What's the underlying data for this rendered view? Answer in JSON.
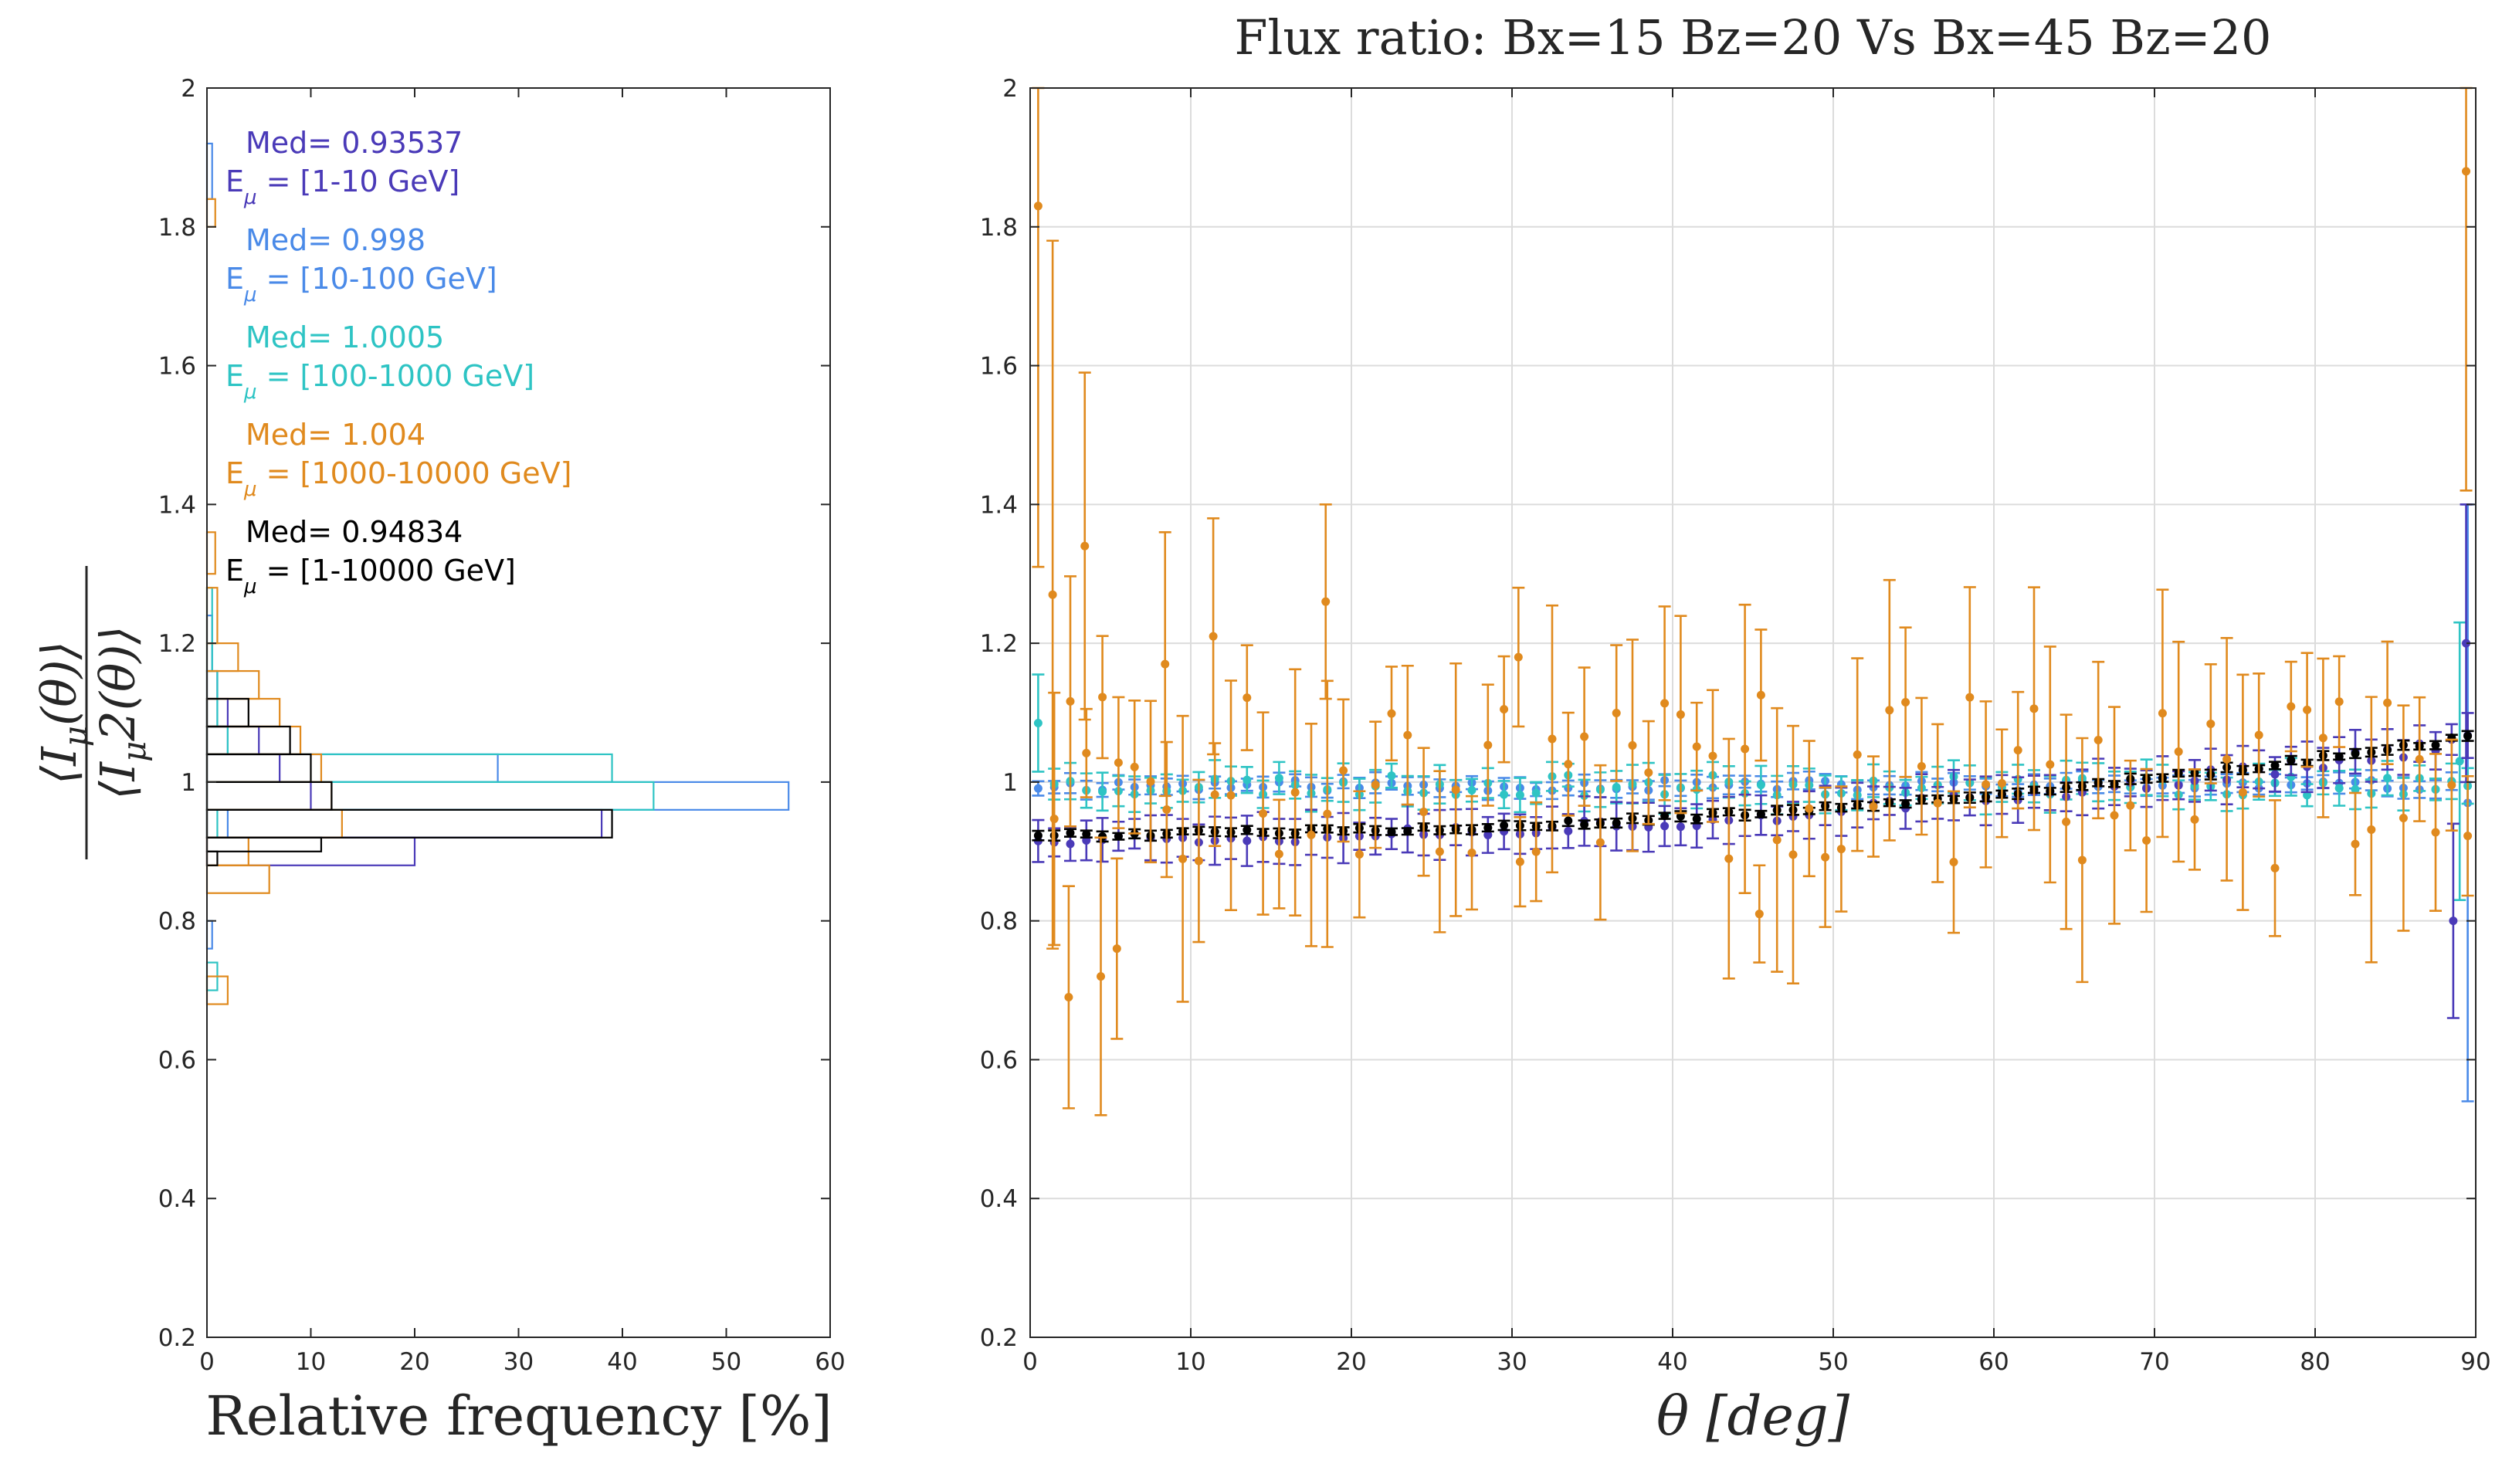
{
  "chart_data": [
    {
      "type": "histogram",
      "orientation": "horizontal",
      "xlabel": "Relative frequency [%]",
      "ylabel": "⟨Iμ(θ)⟩ / ⟨Iμ2(θ)⟩",
      "xlim": [
        0,
        60
      ],
      "ylim": [
        0.2,
        2
      ],
      "xticks": [
        0,
        10,
        20,
        30,
        40,
        50,
        60
      ],
      "yticks": [
        0.2,
        0.4,
        0.6,
        0.8,
        1,
        1.2,
        1.4,
        1.6,
        1.8,
        2
      ],
      "grid": false,
      "legend": [
        {
          "med": "Med= 0.93537",
          "range": "= [1-10 GeV]"
        },
        {
          "med": "Med= 0.998",
          "range": "= [10-100 GeV]"
        },
        {
          "med": "Med= 1.0005",
          "range": "= [100-1000 GeV]"
        },
        {
          "med": "Med= 1.004",
          "range": "= [1000-10000 GeV]"
        },
        {
          "med": "Med= 0.94834",
          "range": "= [1-10000 GeV]"
        }
      ],
      "legend_symbol": "E",
      "legend_subscript": "μ",
      "series": [
        {
          "color": "#4a3ab8",
          "bins": [
            [
              0.88,
              0.92,
              20
            ],
            [
              0.92,
              0.96,
              38
            ],
            [
              0.96,
              1.0,
              10
            ],
            [
              1.0,
              1.04,
              7
            ],
            [
              1.04,
              1.08,
              5
            ],
            [
              1.08,
              1.12,
              2
            ],
            [
              1.12,
              1.16,
              1
            ]
          ]
        },
        {
          "color": "#4a8ae8",
          "bins": [
            [
              0.92,
              0.96,
              2
            ],
            [
              0.96,
              1.0,
              56
            ],
            [
              1.0,
              1.04,
              28
            ],
            [
              1.04,
              1.08,
              2
            ],
            [
              1.08,
              1.16,
              1
            ],
            [
              1.16,
              1.24,
              0.5
            ],
            [
              0.76,
              0.8,
              0.5
            ],
            [
              1.84,
              1.92,
              0.5
            ]
          ]
        },
        {
          "color": "#2ec4c4",
          "bins": [
            [
              0.7,
              0.74,
              1
            ],
            [
              0.92,
              0.96,
              1
            ],
            [
              0.96,
              1.0,
              43
            ],
            [
              1.0,
              1.04,
              39
            ],
            [
              1.04,
              1.08,
              2
            ],
            [
              1.08,
              1.16,
              1
            ],
            [
              1.16,
              1.28,
              0.5
            ]
          ]
        },
        {
          "color": "#e08a1e",
          "bins": [
            [
              0.68,
              0.72,
              2
            ],
            [
              0.84,
              0.88,
              6
            ],
            [
              0.88,
              0.92,
              4
            ],
            [
              0.92,
              0.96,
              13
            ],
            [
              0.96,
              1.0,
              12
            ],
            [
              1.0,
              1.04,
              11
            ],
            [
              1.04,
              1.08,
              9
            ],
            [
              1.08,
              1.12,
              7
            ],
            [
              1.12,
              1.16,
              5
            ],
            [
              1.16,
              1.2,
              3
            ],
            [
              1.2,
              1.28,
              1
            ],
            [
              1.3,
              1.36,
              0.8
            ],
            [
              1.8,
              1.84,
              0.8
            ]
          ]
        },
        {
          "color": "#000000",
          "bins": [
            [
              0.88,
              0.9,
              1
            ],
            [
              0.9,
              0.92,
              11
            ],
            [
              0.92,
              0.96,
              39
            ],
            [
              0.96,
              1.0,
              12
            ],
            [
              1.0,
              1.04,
              10
            ],
            [
              1.04,
              1.08,
              8
            ],
            [
              1.08,
              1.12,
              4
            ]
          ]
        }
      ]
    },
    {
      "type": "scatter",
      "errorbars": true,
      "title": "Flux ratio: Bx=15 Bz=20 Vs Bx=45 Bz=20",
      "xlabel": "θ [deg]",
      "xlim": [
        0,
        90
      ],
      "ylim": [
        0.2,
        2
      ],
      "xticks": [
        0,
        10,
        20,
        30,
        40,
        50,
        60,
        70,
        80,
        90
      ],
      "yticks": [
        0.2,
        0.4,
        0.6,
        0.8,
        1,
        1.2,
        1.4,
        1.6,
        1.8,
        2
      ],
      "grid": true,
      "series": [
        {
          "color": "#4a8ae8",
          "model": {
            "kind": "flat",
            "base": 0.995,
            "amp": 0.008,
            "err": 0.012,
            "seed": 11
          },
          "points": [
            [
              89.5,
              0.97,
              0.43
            ]
          ]
        },
        {
          "color": "#2ec4c4",
          "model": {
            "kind": "flat",
            "base": 0.995,
            "amp": 0.015,
            "err": 0.022,
            "seed": 23
          },
          "points": [
            [
              0.5,
              1.085,
              0.07
            ],
            [
              89,
              1.03,
              0.2
            ]
          ]
        },
        {
          "color": "#4a3ab8",
          "model": {
            "kind": "rise",
            "base": 0.92,
            "amp": 0.01,
            "err": 0.028,
            "seed": 37
          },
          "points": [
            [
              88.6,
              0.8,
              0.14
            ],
            [
              89.4,
              1.2,
              0.2
            ]
          ]
        },
        {
          "color": "#000000",
          "model": {
            "kind": "rise",
            "base": 0.925,
            "amp": 0.004,
            "err": 0.006,
            "seed": 5
          },
          "points": []
        },
        {
          "color": "#e08a1e",
          "model": {
            "kind": "noisy",
            "base": 1.0,
            "amp": 0.13,
            "err": 0.09,
            "seed": 71
          },
          "points": [
            [
              0.5,
              1.83,
              0.52
            ],
            [
              1.4,
              1.27,
              0.51
            ],
            [
              2.4,
              0.69,
              0.16
            ],
            [
              3.4,
              1.34,
              0.25
            ],
            [
              4.4,
              0.72,
              0.2
            ],
            [
              5.4,
              0.76,
              0.13
            ],
            [
              8.4,
              1.17,
              0.19
            ],
            [
              11.4,
              1.21,
              0.17
            ],
            [
              18.4,
              1.26,
              0.14
            ],
            [
              30.4,
              1.18,
              0.1
            ],
            [
              45.4,
              0.81,
              0.07
            ],
            [
              89.4,
              1.88,
              0.46
            ]
          ]
        }
      ]
    }
  ]
}
